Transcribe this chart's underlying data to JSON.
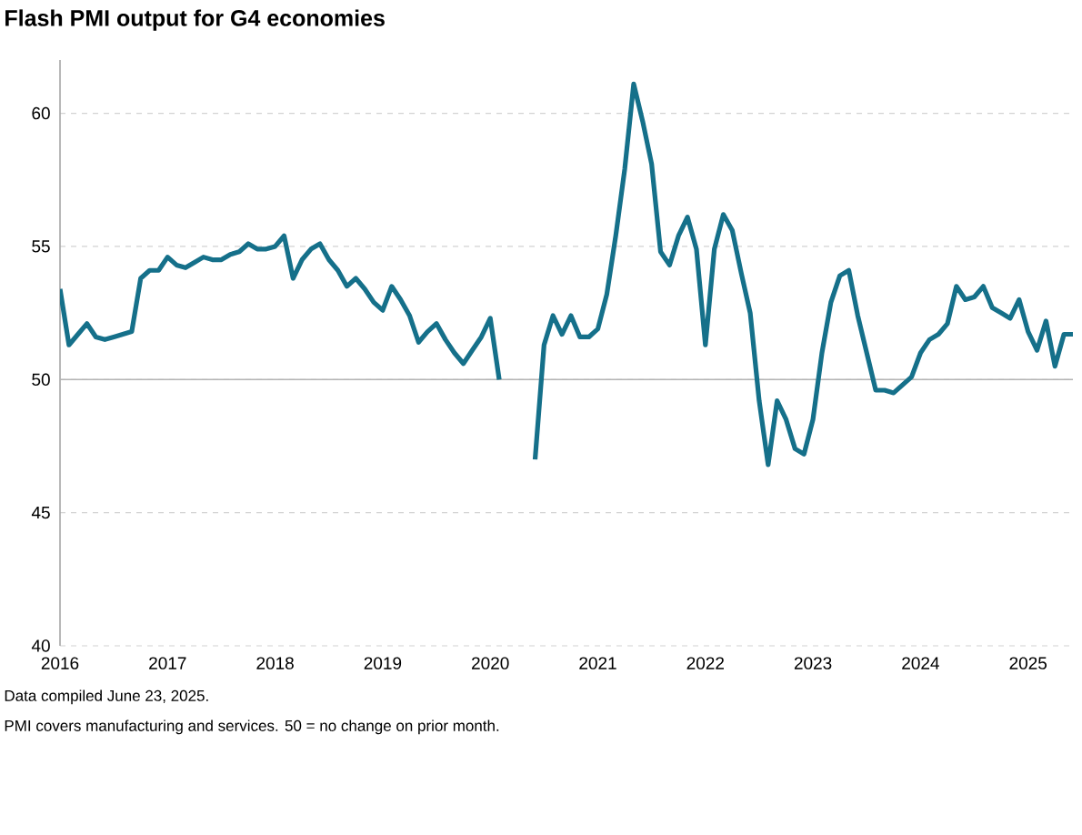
{
  "chart_data": {
    "type": "line",
    "title": "Flash PMI output for G4 economies",
    "x": [
      "2016-01",
      "2016-02",
      "2016-03",
      "2016-04",
      "2016-05",
      "2016-06",
      "2016-07",
      "2016-08",
      "2016-09",
      "2016-10",
      "2016-11",
      "2016-12",
      "2017-01",
      "2017-02",
      "2017-03",
      "2017-04",
      "2017-05",
      "2017-06",
      "2017-07",
      "2017-08",
      "2017-09",
      "2017-10",
      "2017-11",
      "2017-12",
      "2018-01",
      "2018-02",
      "2018-03",
      "2018-04",
      "2018-05",
      "2018-06",
      "2018-07",
      "2018-08",
      "2018-09",
      "2018-10",
      "2018-11",
      "2018-12",
      "2019-01",
      "2019-02",
      "2019-03",
      "2019-04",
      "2019-05",
      "2019-06",
      "2019-07",
      "2019-08",
      "2019-09",
      "2019-10",
      "2019-11",
      "2019-12",
      "2020-01",
      "2020-02",
      "2020-03",
      "2020-04",
      "2020-05",
      "2020-06",
      "2020-07",
      "2020-08",
      "2020-09",
      "2020-10",
      "2020-11",
      "2020-12",
      "2021-01",
      "2021-02",
      "2021-03",
      "2021-04",
      "2021-05",
      "2021-06",
      "2021-07",
      "2021-08",
      "2021-09",
      "2021-10",
      "2021-11",
      "2021-12",
      "2022-01",
      "2022-02",
      "2022-03",
      "2022-04",
      "2022-05",
      "2022-06",
      "2022-07",
      "2022-08",
      "2022-09",
      "2022-10",
      "2022-11",
      "2022-12",
      "2023-01",
      "2023-02",
      "2023-03",
      "2023-04",
      "2023-05",
      "2023-06",
      "2023-07",
      "2023-08",
      "2023-09",
      "2023-10",
      "2023-11",
      "2023-12",
      "2024-01",
      "2024-02",
      "2024-03",
      "2024-04",
      "2024-05",
      "2024-06",
      "2024-07",
      "2024-08",
      "2024-09",
      "2024-10",
      "2024-11",
      "2024-12",
      "2025-01",
      "2025-02",
      "2025-03",
      "2025-04",
      "2025-05",
      "2025-06"
    ],
    "series": [
      {
        "color": "#15708a",
        "values": [
          53.4,
          51.3,
          51.7,
          52.1,
          51.6,
          51.5,
          51.6,
          51.7,
          51.8,
          53.8,
          54.1,
          54.1,
          54.6,
          54.3,
          54.2,
          54.4,
          54.6,
          54.5,
          54.5,
          54.7,
          54.8,
          55.1,
          54.9,
          54.9,
          55.0,
          55.4,
          53.8,
          54.5,
          54.9,
          55.1,
          54.5,
          54.1,
          53.5,
          53.8,
          53.4,
          52.9,
          52.6,
          53.5,
          53.0,
          52.4,
          51.4,
          51.8,
          52.1,
          51.5,
          51.0,
          50.6,
          51.1,
          51.6,
          52.3,
          50.0,
          null,
          null,
          null,
          47.0,
          51.3,
          52.4,
          51.7,
          52.4,
          51.6,
          51.6,
          51.9,
          53.2,
          55.4,
          57.9,
          61.1,
          59.7,
          58.1,
          54.8,
          54.3,
          55.4,
          56.1,
          54.9,
          51.3,
          54.9,
          56.2,
          55.6,
          54.0,
          52.5,
          49.2,
          46.8,
          49.2,
          48.5,
          47.4,
          47.2,
          48.5,
          51.0,
          52.9,
          53.9,
          54.1,
          52.4,
          51.0,
          49.6,
          49.6,
          49.5,
          49.8,
          50.1,
          51.0,
          51.5,
          51.7,
          52.1,
          53.5,
          53.0,
          53.1,
          53.5,
          52.7,
          52.5,
          52.3,
          53.0,
          51.8,
          51.1,
          52.2,
          50.5,
          51.7,
          51.7
        ]
      }
    ],
    "xlim": [
      "2016-01",
      "2025-06"
    ],
    "xticks": [
      "2016",
      "2017",
      "2018",
      "2019",
      "2020",
      "2021",
      "2022",
      "2023",
      "2024",
      "2025"
    ],
    "ylim": [
      40,
      62
    ],
    "yticks": [
      40,
      45,
      50,
      55,
      60
    ],
    "grid": "y",
    "ref_lines": [
      {
        "axis": "y",
        "value": 50,
        "color": "#b3b3b3"
      }
    ],
    "annotations": [
      "Data compiled June 23, 2025.",
      "PMI covers manufacturing and services. 50 = no change on prior month."
    ]
  }
}
